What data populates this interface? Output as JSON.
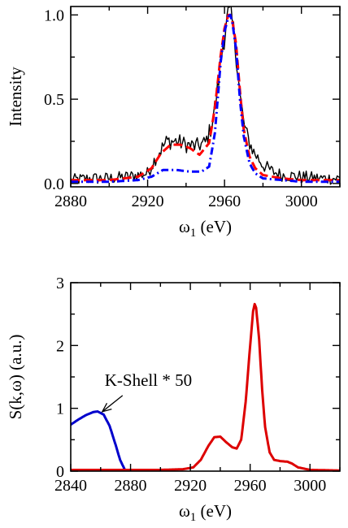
{
  "chart_data": [
    {
      "type": "line",
      "title": "",
      "xlabel_main": "ω",
      "xlabel_sub": "1",
      "xlabel_unit": "(eV)",
      "ylabel": "Intensity",
      "xlim": [
        2880,
        3020
      ],
      "ylim": [
        -0.02,
        1.05
      ],
      "xticks": [
        2880,
        2920,
        2960,
        3000
      ],
      "xtick_labels": [
        "2880",
        "2920",
        "2960",
        "3000"
      ],
      "yticks": [
        0.0,
        0.5,
        1.0
      ],
      "ytick_labels": [
        "0.0",
        "0.5",
        "1.0"
      ],
      "grid": false,
      "series": [
        {
          "style": "solid",
          "color": "#000000",
          "noisy": true,
          "x": [
            2880,
            2890,
            2900,
            2910,
            2920,
            2925,
            2930,
            2935,
            2940,
            2945,
            2950,
            2953,
            2956,
            2958,
            2960,
            2962,
            2963,
            2964,
            2966,
            2968,
            2970,
            2972,
            2975,
            2980,
            2985,
            2990,
            3000,
            3010,
            3020
          ],
          "y": [
            0.02,
            0.03,
            0.03,
            0.04,
            0.06,
            0.17,
            0.25,
            0.25,
            0.23,
            0.22,
            0.24,
            0.33,
            0.52,
            0.72,
            0.9,
            0.99,
            0.99,
            0.95,
            0.79,
            0.52,
            0.36,
            0.27,
            0.19,
            0.11,
            0.07,
            0.05,
            0.04,
            0.03,
            0.03
          ]
        },
        {
          "style": "dashed",
          "color": "#ff0000",
          "x": [
            2880,
            2900,
            2915,
            2922,
            2927,
            2932,
            2937,
            2942,
            2947,
            2952,
            2955,
            2958,
            2960,
            2962,
            2963,
            2964,
            2966,
            2968,
            2970,
            2973,
            2976,
            2980,
            2990,
            3000,
            3020
          ],
          "y": [
            0.02,
            0.02,
            0.04,
            0.09,
            0.18,
            0.23,
            0.23,
            0.21,
            0.17,
            0.24,
            0.45,
            0.76,
            0.92,
            1.0,
            1.0,
            0.97,
            0.83,
            0.55,
            0.32,
            0.16,
            0.09,
            0.05,
            0.03,
            0.02,
            0.02
          ]
        },
        {
          "style": "dashdot",
          "color": "#0000ff",
          "x": [
            2880,
            2900,
            2915,
            2922,
            2928,
            2935,
            2942,
            2948,
            2952,
            2955,
            2958,
            2960,
            2962,
            2963,
            2964,
            2966,
            2968,
            2970,
            2973,
            2976,
            2980,
            2990,
            3000,
            3020
          ],
          "y": [
            0.01,
            0.01,
            0.02,
            0.04,
            0.08,
            0.08,
            0.07,
            0.07,
            0.1,
            0.3,
            0.72,
            0.9,
            0.99,
            1.0,
            0.96,
            0.8,
            0.5,
            0.28,
            0.12,
            0.06,
            0.03,
            0.02,
            0.01,
            0.01
          ]
        }
      ]
    },
    {
      "type": "line",
      "title": "",
      "xlabel_main": "ω",
      "xlabel_sub": "1",
      "xlabel_unit": "(eV)",
      "ylabel": "S(k,ω) (a.u.)",
      "xlim": [
        2840,
        3020
      ],
      "ylim": [
        0,
        3
      ],
      "xticks": [
        2840,
        2880,
        2920,
        2960,
        3000
      ],
      "xtick_labels": [
        "2840",
        "2880",
        "2920",
        "2960",
        "3000"
      ],
      "yticks": [
        0,
        1,
        2,
        3
      ],
      "ytick_labels": [
        "0",
        "1",
        "2",
        "3"
      ],
      "grid": false,
      "annotation": {
        "text": "K-Shell * 50",
        "arrow_to": [
          2860,
          0.92
        ]
      },
      "series": [
        {
          "style": "solid",
          "color": "#0000cc",
          "x": [
            2840,
            2845,
            2850,
            2855,
            2858,
            2862,
            2866,
            2870,
            2873,
            2876,
            2878
          ],
          "y": [
            0.74,
            0.82,
            0.89,
            0.94,
            0.95,
            0.9,
            0.72,
            0.42,
            0.18,
            0.03,
            0.0
          ]
        },
        {
          "style": "solid",
          "color": "#dd0000",
          "x": [
            2840,
            2880,
            2900,
            2915,
            2922,
            2927,
            2932,
            2936,
            2940,
            2944,
            2948,
            2951,
            2954,
            2957,
            2960,
            2962,
            2963,
            2964,
            2966,
            2968,
            2970,
            2973,
            2976,
            2980,
            2985,
            2988,
            2992,
            3000,
            3020
          ],
          "y": [
            0.02,
            0.02,
            0.02,
            0.03,
            0.06,
            0.18,
            0.4,
            0.54,
            0.55,
            0.46,
            0.38,
            0.36,
            0.5,
            1.1,
            2.0,
            2.55,
            2.66,
            2.6,
            2.1,
            1.3,
            0.7,
            0.3,
            0.18,
            0.16,
            0.15,
            0.12,
            0.06,
            0.02,
            0.01
          ]
        }
      ]
    }
  ]
}
